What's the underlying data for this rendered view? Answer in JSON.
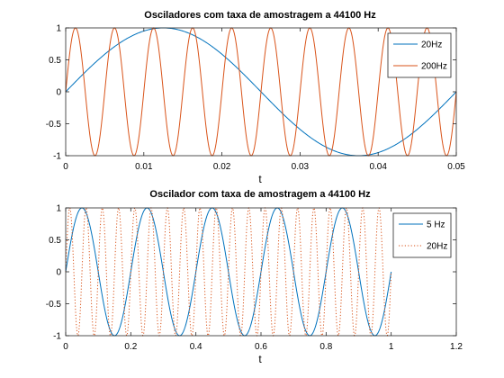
{
  "chart_data": [
    {
      "type": "line",
      "title": "Osciladores com taxa de amostragem a 44100 Hz",
      "xlabel": "t",
      "ylabel": "",
      "xlim": [
        0,
        0.05
      ],
      "ylim": [
        -1,
        1
      ],
      "xticks": [
        0,
        0.01,
        0.02,
        0.03,
        0.04,
        0.05
      ],
      "xtick_labels": [
        "0",
        "0.01",
        "0.02",
        "0.03",
        "0.04",
        "0.05"
      ],
      "yticks": [
        -1,
        -0.5,
        0,
        0.5,
        1
      ],
      "ytick_labels": [
        "-1",
        "-0.5",
        "0",
        "0.5",
        "1"
      ],
      "grid": false,
      "legend_position": "top-right",
      "series": [
        {
          "name": "20Hz",
          "function": "sin",
          "frequency_hz": 20,
          "t_range": [
            0,
            0.05
          ],
          "color": "#0072bd",
          "linestyle": "solid"
        },
        {
          "name": "200Hz",
          "function": "sin",
          "frequency_hz": 200,
          "t_range": [
            0,
            0.05
          ],
          "color": "#d95319",
          "linestyle": "solid"
        }
      ]
    },
    {
      "type": "line",
      "title": "Oscilador com taxa de amostragem a 44100 Hz",
      "xlabel": "t",
      "ylabel": "",
      "xlim": [
        0,
        1.2
      ],
      "ylim": [
        -1,
        1
      ],
      "xticks": [
        0,
        0.2,
        0.4,
        0.6,
        0.8,
        1,
        1.2
      ],
      "xtick_labels": [
        "0",
        "0.2",
        "0.4",
        "0.6",
        "0.8",
        "1",
        "1.2"
      ],
      "yticks": [
        -1,
        -0.5,
        0,
        0.5,
        1
      ],
      "ytick_labels": [
        "-1",
        "-0.5",
        "0",
        "0.5",
        "1"
      ],
      "grid": false,
      "legend_position": "top-right",
      "series": [
        {
          "name": "5 Hz",
          "function": "sin",
          "frequency_hz": 5,
          "t_range": [
            0,
            1
          ],
          "color": "#0072bd",
          "linestyle": "solid"
        },
        {
          "name": "20Hz",
          "function": "sin",
          "frequency_hz": 20,
          "t_range": [
            0,
            1
          ],
          "color": "#d95319",
          "linestyle": "dotted"
        }
      ]
    }
  ]
}
